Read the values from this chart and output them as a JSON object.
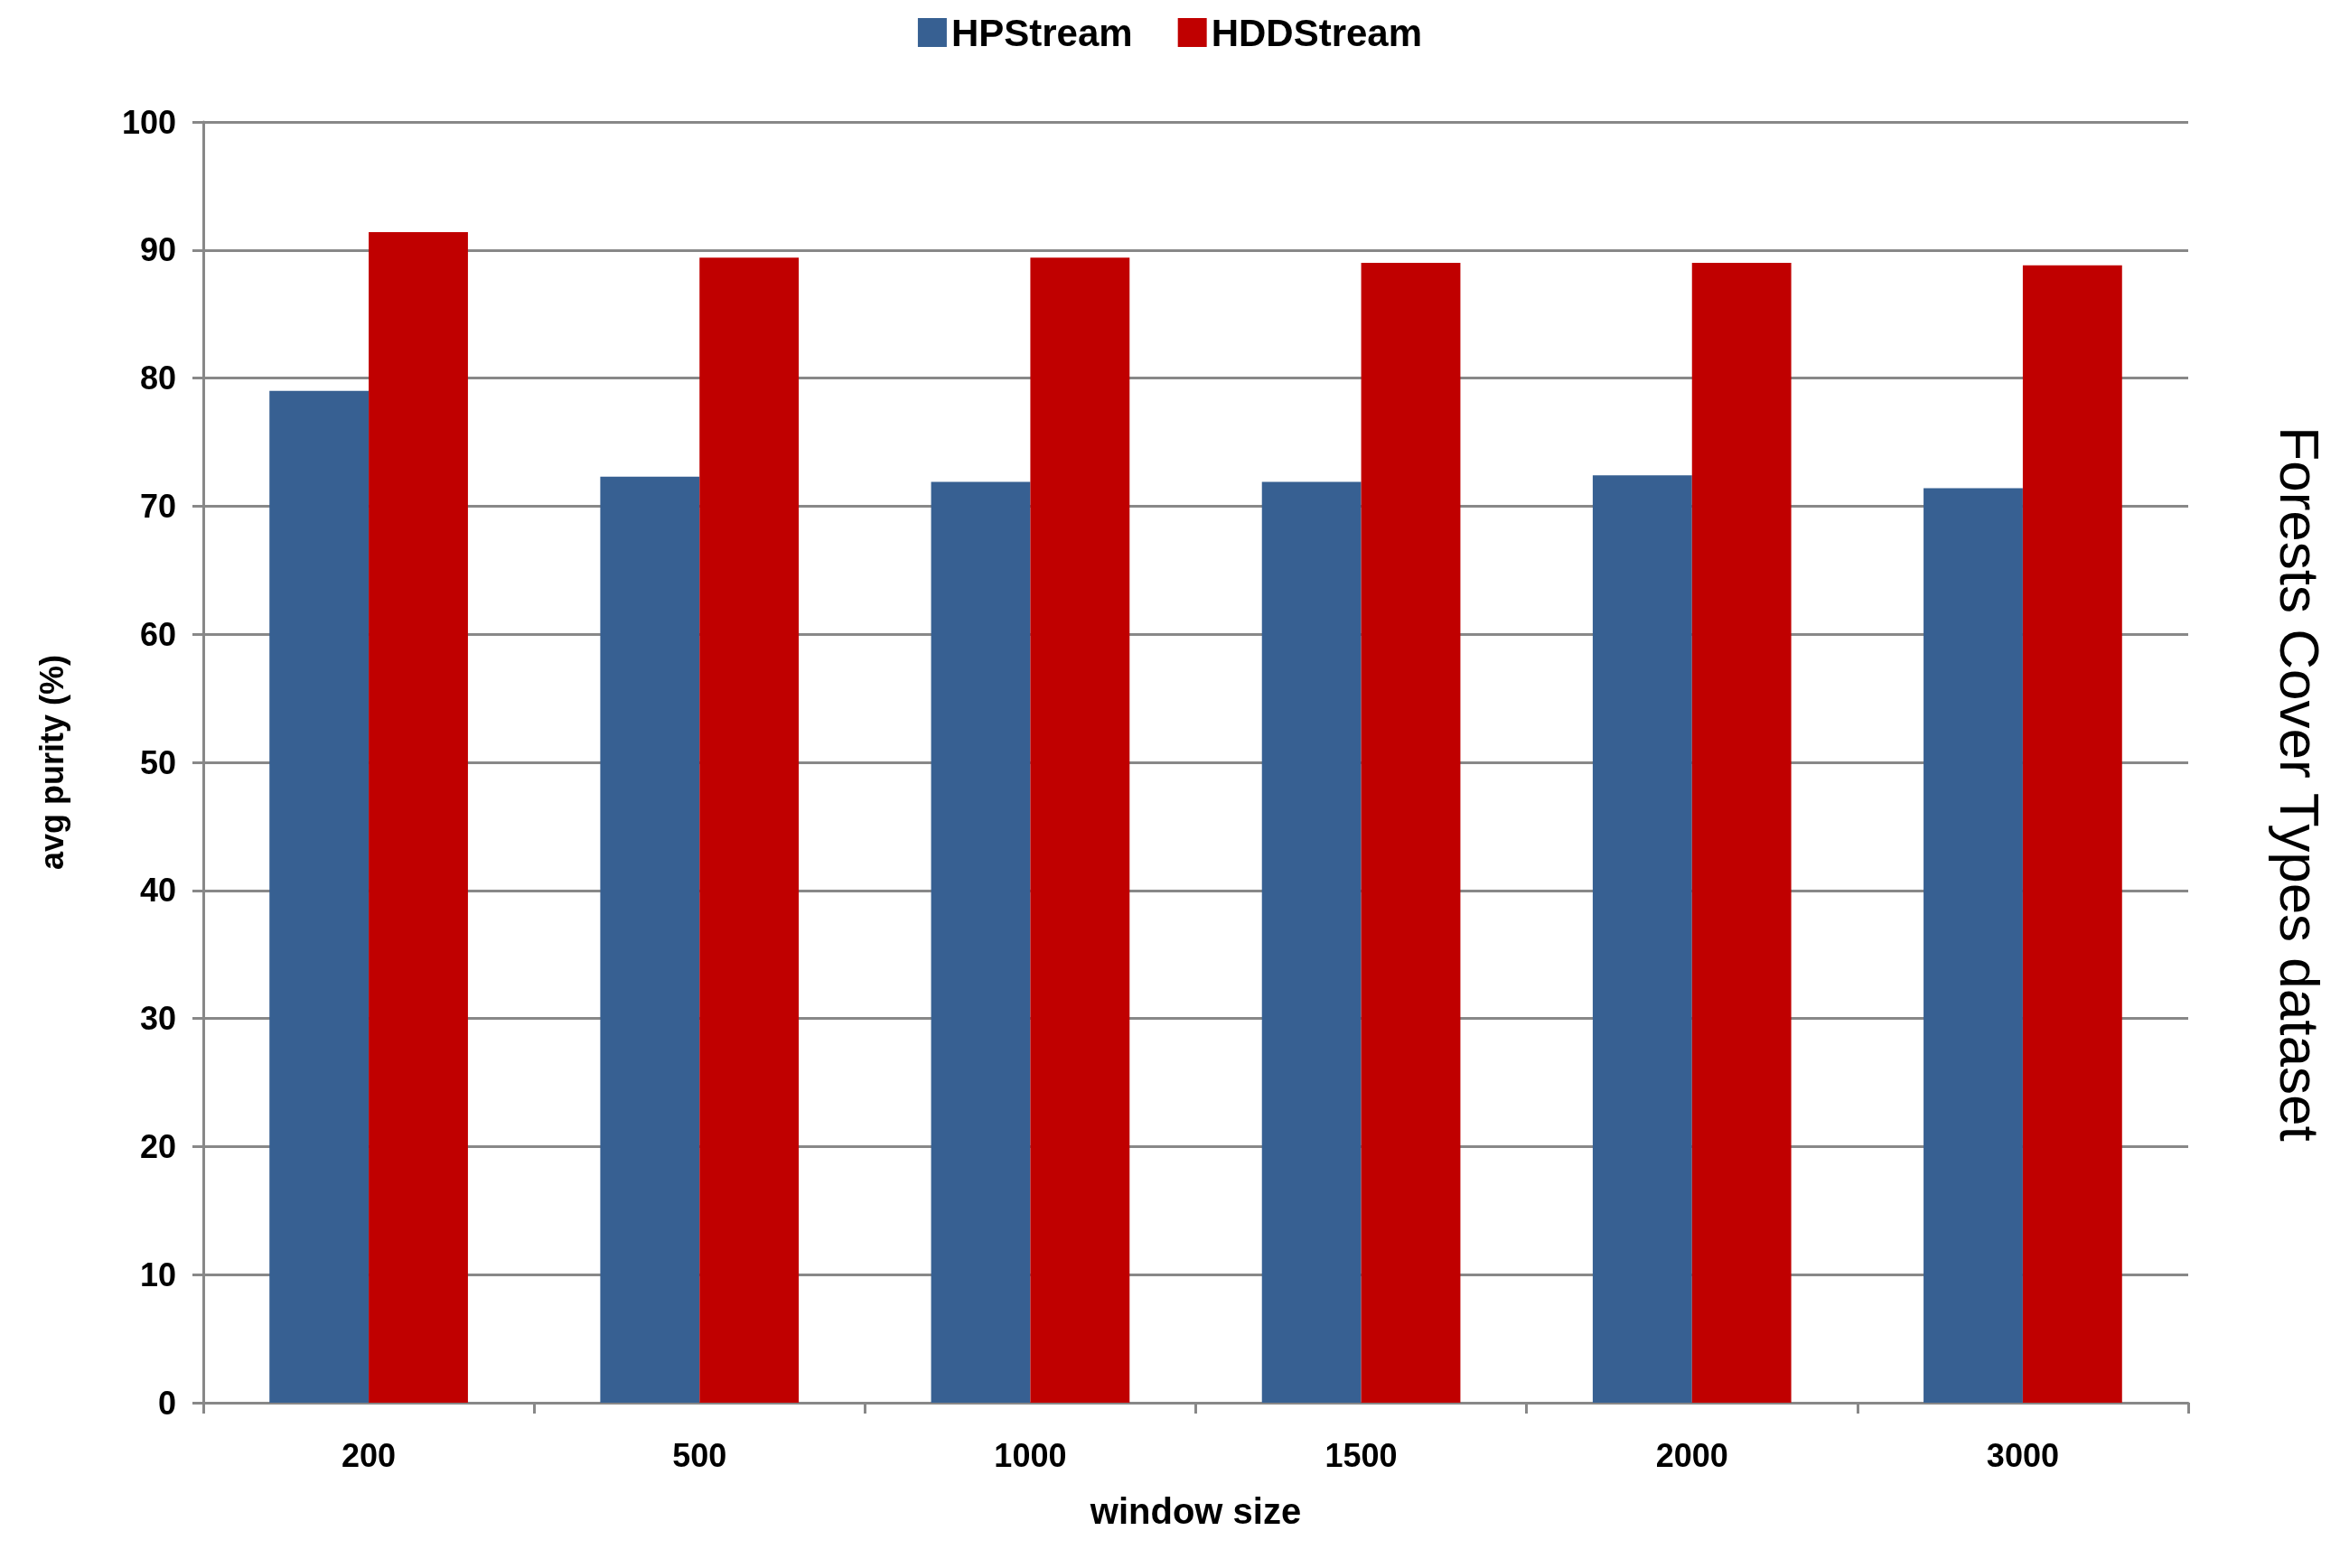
{
  "chart_data": {
    "type": "bar",
    "xlabel": "window size",
    "ylabel": "avg purity (%)",
    "annotations": [
      "Forests Cover Types dataset"
    ],
    "categories": [
      "200",
      "500",
      "1000",
      "1500",
      "2000",
      "3000"
    ],
    "series": [
      {
        "name": "HPStream",
        "color": "#376092",
        "values": [
          79.0,
          72.3,
          71.9,
          71.9,
          72.4,
          71.4
        ]
      },
      {
        "name": "HDDStream",
        "color": "#c00000",
        "values": [
          91.4,
          89.4,
          89.4,
          89.0,
          89.0,
          88.8
        ]
      }
    ],
    "ylim": [
      0,
      100
    ],
    "yticks": [
      0,
      10,
      20,
      30,
      40,
      50,
      60,
      70,
      80,
      90,
      100
    ],
    "grid": "y",
    "legend": "top"
  }
}
